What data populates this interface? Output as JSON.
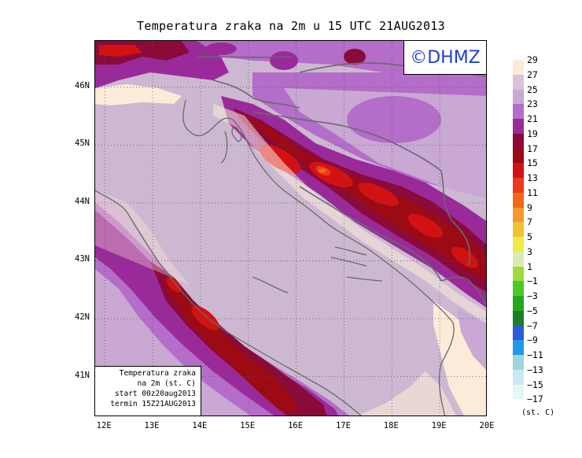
{
  "title": "Temperatura zraka na 2m u 15 UTC 21AUG2013",
  "logo_text": "©DHMZ",
  "info_box": {
    "line1": "Temperatura zraka",
    "line2": "na 2m (st. C)",
    "line3": "start 00z20aug2013",
    "line4": "termin 15Z21AUG2013"
  },
  "y_ticks": [
    {
      "label": "46N",
      "lat": 46
    },
    {
      "label": "45N",
      "lat": 45
    },
    {
      "label": "44N",
      "lat": 44
    },
    {
      "label": "43N",
      "lat": 43
    },
    {
      "label": "42N",
      "lat": 42
    },
    {
      "label": "41N",
      "lat": 41
    }
  ],
  "x_ticks": [
    {
      "label": "12E",
      "lon": 12
    },
    {
      "label": "13E",
      "lon": 13
    },
    {
      "label": "14E",
      "lon": 14
    },
    {
      "label": "15E",
      "lon": 15
    },
    {
      "label": "16E",
      "lon": 16
    },
    {
      "label": "17E",
      "lon": 17
    },
    {
      "label": "18E",
      "lon": 18
    },
    {
      "label": "19E",
      "lon": 19
    },
    {
      "label": "20E",
      "lon": 20
    }
  ],
  "legend": {
    "labels": [
      "29",
      "27",
      "25",
      "23",
      "21",
      "19",
      "17",
      "15",
      "13",
      "11",
      "9",
      "7",
      "5",
      "3",
      "1",
      "−1",
      "−3",
      "−5",
      "−7",
      "−9",
      "−11",
      "−13",
      "−15",
      "−17"
    ],
    "colors": [
      "#fcebd8",
      "#d9c3d9",
      "#c9a8d4",
      "#b46dc8",
      "#9a2a9a",
      "#8a0a3a",
      "#9c0a14",
      "#d21212",
      "#ea3a1a",
      "#f0691a",
      "#f39a2e",
      "#efc237",
      "#edeb4a",
      "#d8ecb0",
      "#9edb3a",
      "#4cc828",
      "#26a81e",
      "#1a7f28",
      "#2a5ad8",
      "#1f9ae8",
      "#9ed5e0",
      "#c9eaee",
      "#e6f5f6"
    ],
    "units": "(st. C)"
  },
  "map": {
    "lon_range": [
      11.8,
      20.0
    ],
    "lat_range": [
      40.3,
      46.8
    ],
    "colors": {
      "warm_sea": "#c9b3cf",
      "warmest": "#fcebd8",
      "inland_25": "#c9a8d4",
      "inland_23": "#b46dc8",
      "inland_21": "#9a2a9a",
      "mountain_19": "#8a0a3a",
      "mountain_17": "#9c0a14",
      "mountain_15": "#d21212",
      "coast_line": "#6a6a6a",
      "grid": "#555555"
    }
  }
}
